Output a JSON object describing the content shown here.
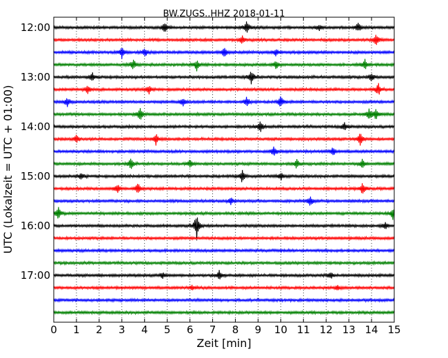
{
  "chart_data": {
    "type": "line",
    "title": "BW.ZUGS..HHZ 2018-01-11",
    "xlabel": "Zeit  [min]",
    "ylabel": "UTC (Lokalzeit = UTC + 01:00)",
    "xlim": [
      0,
      15
    ],
    "x_ticks": [
      0,
      1,
      2,
      3,
      4,
      5,
      6,
      7,
      8,
      9,
      10,
      11,
      12,
      13,
      14,
      15
    ],
    "y_ticks": [
      "12:00",
      "13:00",
      "14:00",
      "15:00",
      "16:00",
      "17:00"
    ],
    "grid": "vertical dotted",
    "trace_minutes": 15,
    "start_time": "12:00",
    "colors": [
      "#000000",
      "#ff0000",
      "#0000ff",
      "#008000"
    ],
    "series": [
      {
        "start": "12:00",
        "color": "#000000",
        "events": [
          {
            "t": 4.9,
            "amp": 0.35
          },
          {
            "t": 8.5,
            "amp": 0.45
          },
          {
            "t": 11.7,
            "amp": 0.25
          },
          {
            "t": 13.4,
            "amp": 0.3
          }
        ]
      },
      {
        "start": "12:15",
        "color": "#ff0000",
        "events": [
          {
            "t": 8.3,
            "amp": 0.3
          },
          {
            "t": 14.2,
            "amp": 0.4
          }
        ]
      },
      {
        "start": "12:30",
        "color": "#0000ff",
        "events": [
          {
            "t": 3.0,
            "amp": 0.35
          },
          {
            "t": 4.0,
            "amp": 0.3
          },
          {
            "t": 7.5,
            "amp": 0.35
          },
          {
            "t": 9.8,
            "amp": 0.25
          }
        ]
      },
      {
        "start": "12:45",
        "color": "#008000",
        "events": [
          {
            "t": 3.5,
            "amp": 0.35
          },
          {
            "t": 6.3,
            "amp": 0.35
          },
          {
            "t": 9.8,
            "amp": 0.25
          },
          {
            "t": 13.7,
            "amp": 0.35
          }
        ]
      },
      {
        "start": "13:00",
        "color": "#000000",
        "events": [
          {
            "t": 1.7,
            "amp": 0.3
          },
          {
            "t": 8.7,
            "amp": 0.5
          },
          {
            "t": 14.0,
            "amp": 0.3
          }
        ]
      },
      {
        "start": "13:15",
        "color": "#ff0000",
        "events": [
          {
            "t": 1.5,
            "amp": 0.25
          },
          {
            "t": 4.2,
            "amp": 0.3
          },
          {
            "t": 14.3,
            "amp": 0.4
          }
        ]
      },
      {
        "start": "13:30",
        "color": "#0000ff",
        "events": [
          {
            "t": 0.6,
            "amp": 0.3
          },
          {
            "t": 5.7,
            "amp": 0.25
          },
          {
            "t": 8.5,
            "amp": 0.35
          },
          {
            "t": 10.0,
            "amp": 0.4
          }
        ]
      },
      {
        "start": "13:45",
        "color": "#008000",
        "events": [
          {
            "t": 3.8,
            "amp": 0.45
          },
          {
            "t": 13.9,
            "amp": 0.35
          },
          {
            "t": 14.2,
            "amp": 0.35
          }
        ]
      },
      {
        "start": "14:00",
        "color": "#000000",
        "events": [
          {
            "t": 9.1,
            "amp": 0.4
          },
          {
            "t": 12.8,
            "amp": 0.3
          }
        ]
      },
      {
        "start": "14:15",
        "color": "#ff0000",
        "events": [
          {
            "t": 1.0,
            "amp": 0.25
          },
          {
            "t": 4.5,
            "amp": 0.35
          },
          {
            "t": 13.5,
            "amp": 0.45
          }
        ]
      },
      {
        "start": "14:30",
        "color": "#0000ff",
        "events": [
          {
            "t": 9.7,
            "amp": 0.4
          },
          {
            "t": 12.3,
            "amp": 0.25
          }
        ]
      },
      {
        "start": "14:45",
        "color": "#008000",
        "events": [
          {
            "t": 3.4,
            "amp": 0.35
          },
          {
            "t": 6.0,
            "amp": 0.25
          },
          {
            "t": 10.7,
            "amp": 0.3
          },
          {
            "t": 13.6,
            "amp": 0.3
          }
        ]
      },
      {
        "start": "15:00",
        "color": "#000000",
        "events": [
          {
            "t": 1.2,
            "amp": 0.25
          },
          {
            "t": 8.3,
            "amp": 0.4
          },
          {
            "t": 10.0,
            "amp": 0.25
          }
        ]
      },
      {
        "start": "15:15",
        "color": "#ff0000",
        "events": [
          {
            "t": 2.8,
            "amp": 0.3
          },
          {
            "t": 3.7,
            "amp": 0.35
          },
          {
            "t": 13.6,
            "amp": 0.35
          }
        ]
      },
      {
        "start": "15:30",
        "color": "#0000ff",
        "events": [
          {
            "t": 7.8,
            "amp": 0.25
          },
          {
            "t": 11.3,
            "amp": 0.3
          }
        ]
      },
      {
        "start": "15:45",
        "color": "#008000",
        "events": [
          {
            "t": 0.2,
            "amp": 0.4
          },
          {
            "t": 14.95,
            "amp": 0.4
          }
        ]
      },
      {
        "start": "16:00",
        "color": "#000000",
        "events": [
          {
            "t": 6.3,
            "amp": 0.9
          },
          {
            "t": 14.6,
            "amp": 0.25
          }
        ]
      },
      {
        "start": "16:15",
        "color": "#ff0000",
        "events": []
      },
      {
        "start": "16:30",
        "color": "#0000ff",
        "events": []
      },
      {
        "start": "16:45",
        "color": "#008000",
        "events": []
      },
      {
        "start": "17:00",
        "color": "#000000",
        "events": [
          {
            "t": 4.8,
            "amp": 0.2
          },
          {
            "t": 7.3,
            "amp": 0.35
          },
          {
            "t": 12.2,
            "amp": 0.2
          }
        ]
      },
      {
        "start": "17:15",
        "color": "#ff0000",
        "events": [
          {
            "t": 6.1,
            "amp": 0.15
          },
          {
            "t": 12.5,
            "amp": 0.15
          }
        ]
      },
      {
        "start": "17:30",
        "color": "#0000ff",
        "events": []
      },
      {
        "start": "17:45",
        "color": "#008000",
        "events": []
      }
    ]
  }
}
